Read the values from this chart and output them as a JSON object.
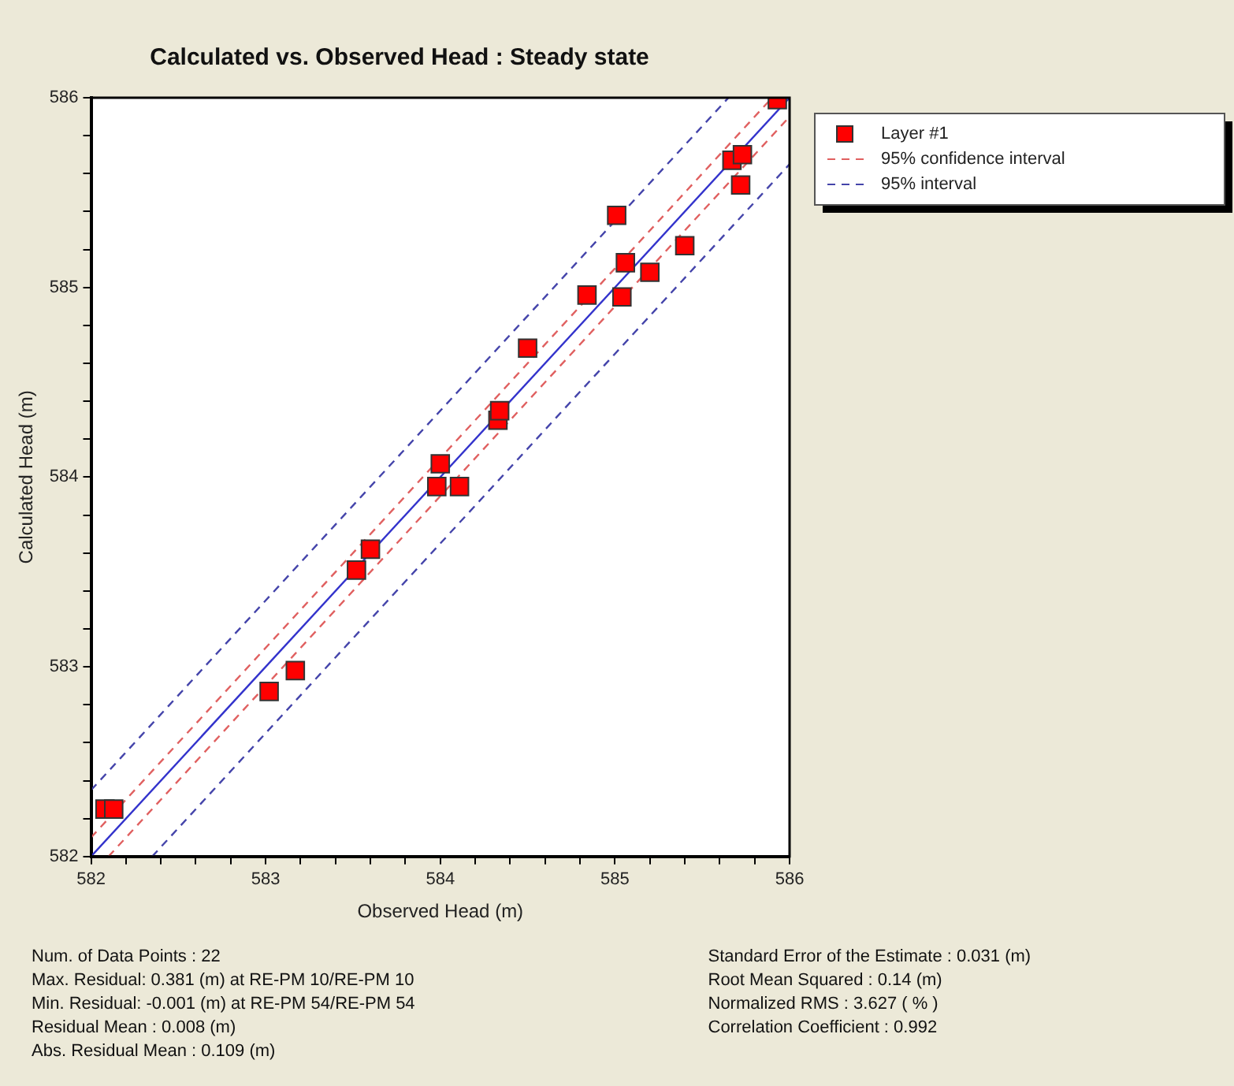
{
  "chart_data": {
    "type": "scatter",
    "title": "Calculated vs. Observed Head : Steady state",
    "xlabel": "Observed Head (m)",
    "ylabel": "Calculated Head (m)",
    "xlim": [
      582,
      586
    ],
    "ylim": [
      582,
      586
    ],
    "xticks": [
      582,
      {
        "value": 582.2,
        "label": null
      },
      {
        "value": 582.4,
        "label": null
      },
      {
        "value": 582.6,
        "label": null
      },
      {
        "value": 582.8,
        "label": null
      },
      583,
      {
        "value": 583.2,
        "label": null
      },
      {
        "value": 583.4,
        "label": null
      },
      {
        "value": 583.6,
        "label": null
      },
      {
        "value": 583.8,
        "label": null
      },
      584,
      {
        "value": 584.2,
        "label": null
      },
      {
        "value": 584.4,
        "label": null
      },
      {
        "value": 584.6,
        "label": null
      },
      {
        "value": 584.8,
        "label": null
      },
      585,
      {
        "value": 585.2,
        "label": null
      },
      {
        "value": 585.4,
        "label": null
      },
      {
        "value": 585.6,
        "label": null
      },
      {
        "value": 585.8,
        "label": null
      },
      586
    ],
    "yticks": [
      582,
      {
        "value": 582.2,
        "label": null
      },
      {
        "value": 582.4,
        "label": null
      },
      {
        "value": 582.6,
        "label": null
      },
      {
        "value": 582.8,
        "label": null
      },
      583,
      {
        "value": 583.2,
        "label": null
      },
      {
        "value": 583.4,
        "label": null
      },
      {
        "value": 583.6,
        "label": null
      },
      {
        "value": 583.8,
        "label": null
      },
      584,
      {
        "value": 584.2,
        "label": null
      },
      {
        "value": 584.4,
        "label": null
      },
      {
        "value": 584.6,
        "label": null
      },
      {
        "value": 584.8,
        "label": null
      },
      585,
      {
        "value": 585.2,
        "label": null
      },
      {
        "value": 585.4,
        "label": null
      },
      {
        "value": 585.6,
        "label": null
      },
      {
        "value": 585.8,
        "label": null
      },
      586
    ],
    "grid": false,
    "legend": "top right",
    "series": [
      {
        "name": "Layer #1",
        "marker": "square",
        "color": "#ff0000",
        "x": [
          582.08,
          582.13,
          583.02,
          583.17,
          583.52,
          583.6,
          583.98,
          584.0,
          584.11,
          584.33,
          584.34,
          584.5,
          584.84,
          585.04,
          585.01,
          585.06,
          585.2,
          585.4,
          585.67,
          585.73,
          585.72,
          585.93
        ],
        "values": [
          582.25,
          582.25,
          582.87,
          582.98,
          583.51,
          583.62,
          583.95,
          584.07,
          583.95,
          584.3,
          584.35,
          584.68,
          584.96,
          584.95,
          585.38,
          585.13,
          585.08,
          585.22,
          585.67,
          585.7,
          585.54,
          585.99
        ]
      },
      {
        "type": "line",
        "marker": "none",
        "line_style": "solid",
        "color": "#3333cc",
        "x": [
          582,
          586
        ],
        "values": [
          582,
          586
        ]
      },
      {
        "name": "95% confidence interval",
        "type": "line",
        "marker": "none",
        "line_style": "dashed",
        "color": "#e06060",
        "x": [
          582,
          585.9
        ],
        "values": [
          582.1,
          586
        ]
      },
      {
        "type": "line",
        "marker": "none",
        "line_style": "dashed",
        "color": "#e06060",
        "x": [
          582.1,
          586
        ],
        "values": [
          582,
          585.9
        ]
      },
      {
        "name": "95% interval",
        "type": "line",
        "marker": "none",
        "line_style": "dashed",
        "color": "#4444aa",
        "x": [
          582,
          585.65
        ],
        "values": [
          582.35,
          586
        ]
      },
      {
        "type": "line",
        "marker": "none",
        "line_style": "dashed",
        "color": "#4444aa",
        "x": [
          582.35,
          586
        ],
        "values": [
          582,
          585.65
        ]
      }
    ],
    "annotations": [
      "Num. of Data Points : 22",
      "Max. Residual: 0.381 (m) at RE-PM 10/RE-PM 10",
      "Min. Residual: -0.001 (m) at RE-PM 54/RE-PM 54",
      "Residual Mean : 0.008 (m)",
      "Abs. Residual Mean : 0.109 (m)",
      "Standard Error of the Estimate : 0.031 (m)",
      "Root Mean Squared : 0.14 (m)",
      "Normalized RMS : 3.627 ( % )",
      "Correlation Coefficient : 0.992"
    ]
  }
}
